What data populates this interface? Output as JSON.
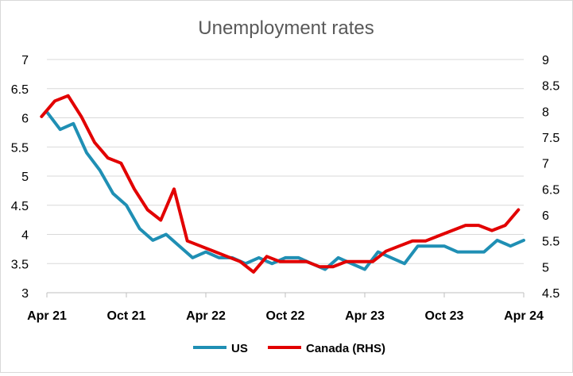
{
  "chart_data": {
    "type": "line",
    "title": "Unemployment rates",
    "x": [
      "Apr 21",
      "May 21",
      "Jun 21",
      "Jul 21",
      "Aug 21",
      "Sep 21",
      "Oct 21",
      "Nov 21",
      "Dec 21",
      "Jan 22",
      "Feb 22",
      "Mar 22",
      "Apr 22",
      "May 22",
      "Jun 22",
      "Jul 22",
      "Aug 22",
      "Sep 22",
      "Oct 22",
      "Nov 22",
      "Dec 22",
      "Jan 23",
      "Feb 23",
      "Mar 23",
      "Apr 23",
      "May 23",
      "Jun 23",
      "Jul 23",
      "Aug 23",
      "Sep 23",
      "Oct 23",
      "Nov 23",
      "Dec 23",
      "Jan 24",
      "Feb 24",
      "Mar 24",
      "Apr 24"
    ],
    "x_tick_labels": [
      "Apr 21",
      "Oct 21",
      "Apr 22",
      "Oct 22",
      "Apr 23",
      "Oct 23",
      "Apr 24"
    ],
    "x_tick_indices": [
      0,
      6,
      12,
      18,
      24,
      30,
      36
    ],
    "yleft": {
      "ylim": [
        3,
        7
      ],
      "ticks": [
        "3",
        "3.5",
        "4",
        "4.5",
        "5",
        "5.5",
        "6",
        "6.5",
        "7"
      ]
    },
    "yright": {
      "ylim": [
        4.5,
        9
      ],
      "ticks": [
        "4.5",
        "5",
        "5.5",
        "6",
        "6.5",
        "7",
        "7.5",
        "8",
        "8.5",
        "9"
      ]
    },
    "grid": true,
    "legend": "bottom",
    "series": [
      {
        "name": "US",
        "axis": "left",
        "color": "#1f8fb4",
        "values": [
          6.1,
          5.8,
          5.9,
          5.4,
          5.1,
          4.7,
          4.5,
          4.1,
          3.9,
          4.0,
          3.8,
          3.6,
          3.7,
          3.6,
          3.6,
          3.5,
          3.6,
          3.5,
          3.6,
          3.6,
          3.5,
          3.4,
          3.6,
          3.5,
          3.4,
          3.7,
          3.6,
          3.5,
          3.8,
          3.8,
          3.8,
          3.7,
          3.7,
          3.7,
          3.9,
          3.8,
          3.9
        ]
      },
      {
        "name": "Canada (RHS)",
        "axis": "right",
        "color": "#e20000",
        "x_start_offset": -0.4,
        "values": [
          7.9,
          8.2,
          8.3,
          7.9,
          7.4,
          7.1,
          7.0,
          6.5,
          6.1,
          5.9,
          6.5,
          5.5,
          5.4,
          5.3,
          5.2,
          5.1,
          4.9,
          5.2,
          5.1,
          5.1,
          5.1,
          5.0,
          5.0,
          5.1,
          5.1,
          5.1,
          5.3,
          5.4,
          5.5,
          5.5,
          5.6,
          5.7,
          5.8,
          5.8,
          5.7,
          5.8,
          6.1
        ]
      }
    ]
  }
}
